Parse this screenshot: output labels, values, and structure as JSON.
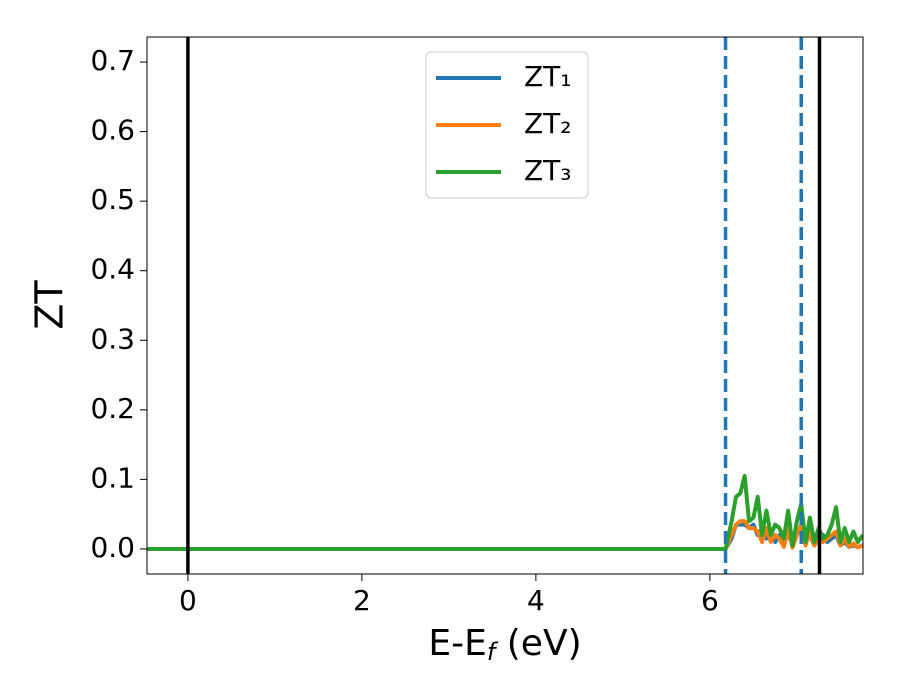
{
  "chart_data": {
    "type": "line",
    "x_label": [
      "E-E",
      "f",
      " (eV)"
    ],
    "y_label": "ZT",
    "x": [
      -0.47,
      6.18,
      6.25,
      6.3,
      6.35,
      6.4,
      6.45,
      6.5,
      6.55,
      6.6,
      6.65,
      6.7,
      6.75,
      6.8,
      6.85,
      6.9,
      6.95,
      7.0,
      7.05,
      7.1,
      7.15,
      7.2,
      7.25,
      7.3,
      7.35,
      7.4,
      7.45,
      7.5,
      7.55,
      7.6,
      7.65,
      7.7,
      7.76
    ],
    "series": [
      {
        "name": "ZT₁",
        "color": "#1f77b4",
        "values": [
          0,
          0,
          0.015,
          0.035,
          0.035,
          0.035,
          0.03,
          0.035,
          0.02,
          0.03,
          0.015,
          0.025,
          0.01,
          0.02,
          0.005,
          0.025,
          0.003,
          0.02,
          0.03,
          0.01,
          0.02,
          0.005,
          0.015,
          0.02,
          0.01,
          0.015,
          0.02,
          0.005,
          0.01,
          0.003,
          0.005,
          0.003,
          0.005
        ]
      },
      {
        "name": "ZT₂",
        "color": "#ff7f0e",
        "values": [
          0,
          0,
          0.02,
          0.035,
          0.04,
          0.04,
          0.03,
          0.03,
          0.025,
          0.01,
          0.03,
          0.01,
          0.02,
          0.015,
          0.003,
          0.03,
          0.002,
          0.02,
          0.035,
          0.005,
          0.025,
          0.005,
          0.02,
          0.01,
          0.015,
          0.02,
          0.025,
          0.005,
          0.015,
          0.003,
          0.008,
          0.002,
          0.005
        ]
      },
      {
        "name": "ZT₃",
        "color": "#2ca02c",
        "values": [
          0,
          0,
          0.04,
          0.075,
          0.08,
          0.105,
          0.04,
          0.045,
          0.075,
          0.02,
          0.055,
          0.02,
          0.035,
          0.03,
          0.015,
          0.055,
          0.005,
          0.04,
          0.065,
          0.01,
          0.045,
          0.01,
          0.03,
          0.015,
          0.02,
          0.035,
          0.06,
          0.01,
          0.03,
          0.01,
          0.025,
          0.01,
          0.02
        ]
      }
    ],
    "vlines": [
      {
        "x": 0,
        "color": "#000000",
        "style": "solid"
      },
      {
        "x": 7.26,
        "color": "#000000",
        "style": "solid"
      },
      {
        "x": 6.18,
        "color": "#1f77b4",
        "style": "dashed"
      },
      {
        "x": 7.05,
        "color": "#1f77b4",
        "style": "dashed"
      }
    ],
    "xlim": [
      -0.47,
      7.76
    ],
    "ylim": [
      -0.036,
      0.736
    ],
    "xticks": [
      0,
      2,
      4,
      6
    ],
    "yticks": [
      {
        "value": 0,
        "label": "0.0"
      },
      {
        "value": 0.1,
        "label": "0.1"
      },
      {
        "value": 0.2,
        "label": "0.2"
      },
      {
        "value": 0.3,
        "label": "0.3"
      },
      {
        "value": 0.4,
        "label": "0.4"
      },
      {
        "value": 0.5,
        "label": "0.5"
      },
      {
        "value": 0.6,
        "label": "0.6"
      },
      {
        "value": 0.7,
        "label": "0.7"
      }
    ],
    "legend": "upper center",
    "grid": false
  }
}
